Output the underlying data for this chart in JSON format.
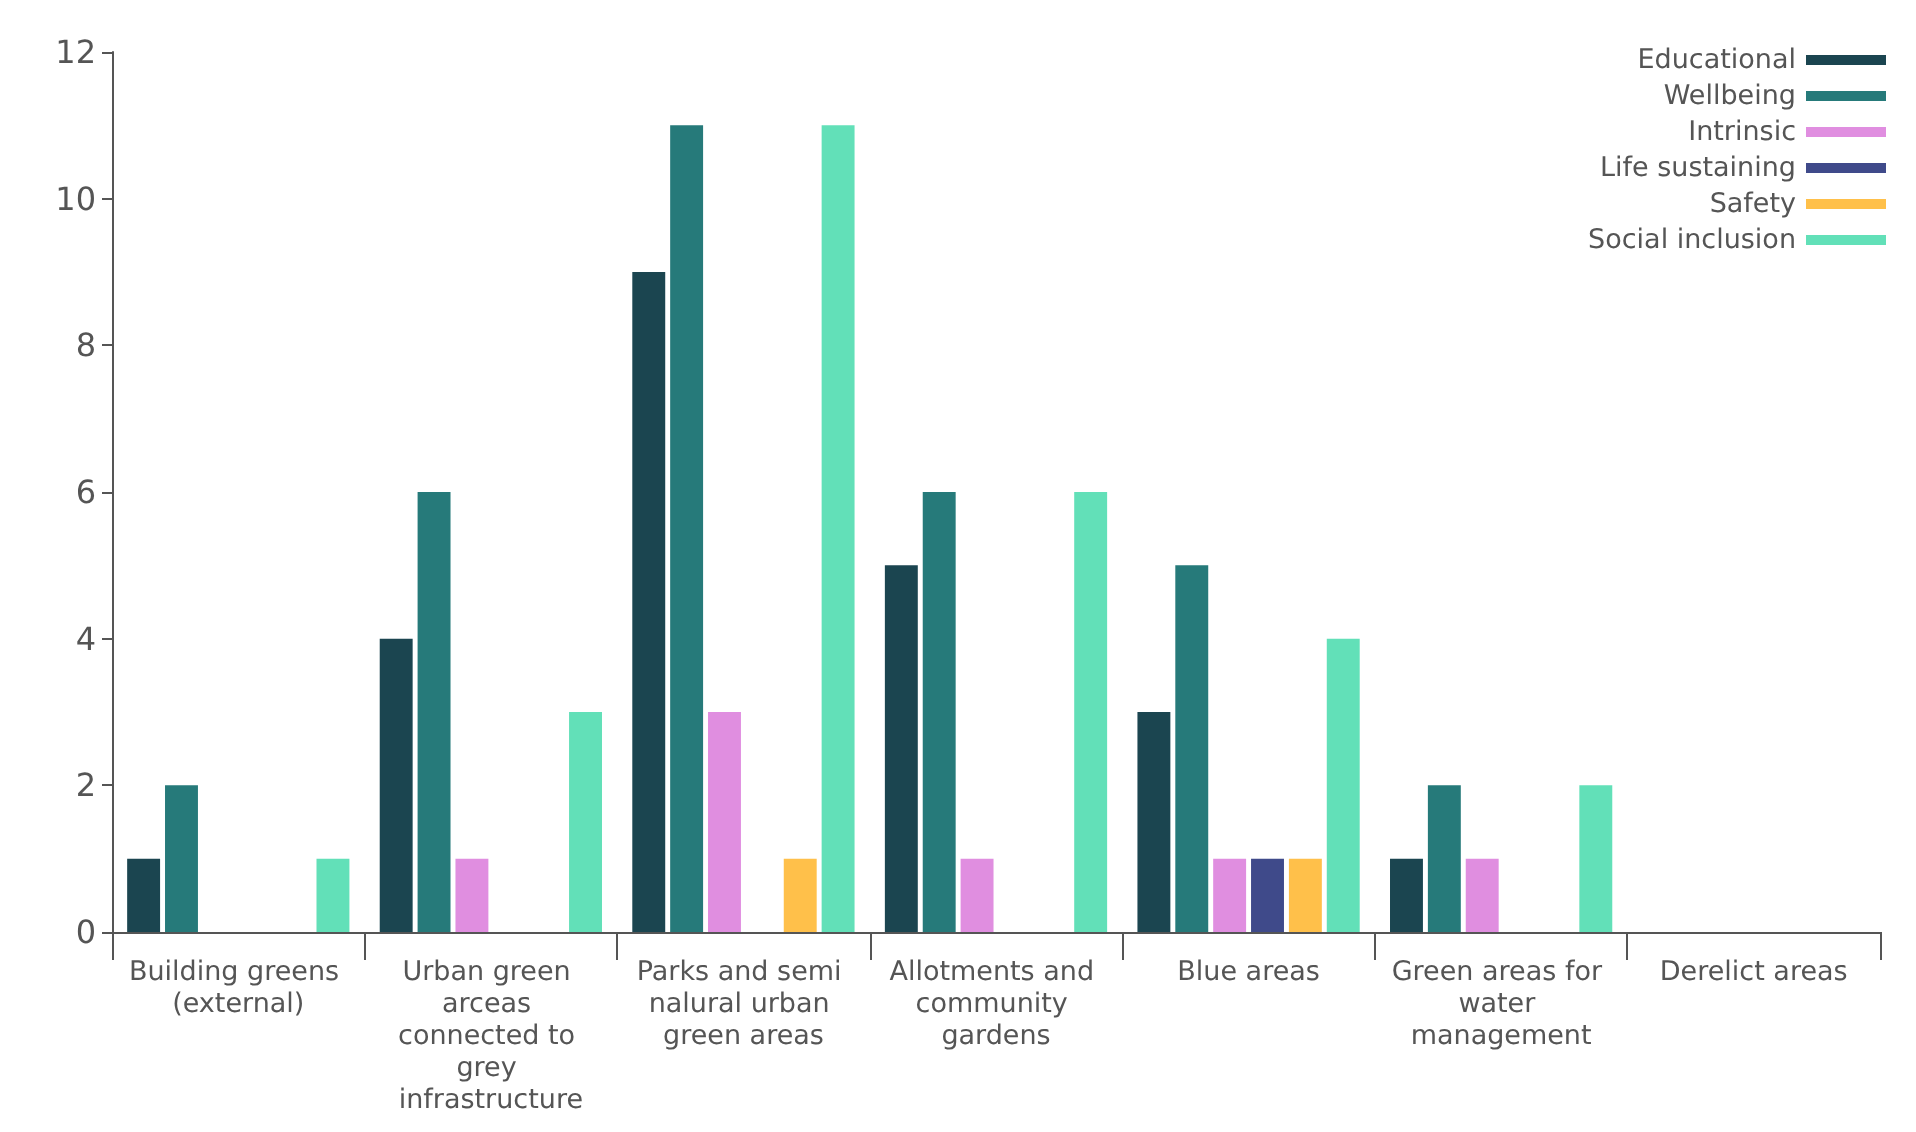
{
  "chart_data": {
    "type": "bar",
    "categories": [
      "Building greens (external)",
      "Urban green arceas connected to grey infrastructure",
      "Parks and semi nalural urban green areas",
      "Allotments and community gardens",
      "Blue areas",
      "Green areas for water management",
      "Derelict areas"
    ],
    "series": [
      {
        "name": "Educational",
        "color": "#1b4550",
        "values": [
          1,
          4,
          9,
          5,
          3,
          1,
          0
        ]
      },
      {
        "name": "Wellbeing",
        "color": "#267a7a",
        "values": [
          2,
          6,
          11,
          6,
          5,
          2,
          0
        ]
      },
      {
        "name": "Intrinsic",
        "color": "#e08ee0",
        "values": [
          0,
          1,
          3,
          1,
          1,
          1,
          0
        ]
      },
      {
        "name": "Life sustaining",
        "color": "#3f4a8a",
        "values": [
          0,
          0,
          0,
          0,
          1,
          0,
          0
        ]
      },
      {
        "name": "Safety",
        "color": "#ffc04a",
        "values": [
          0,
          0,
          1,
          0,
          1,
          0,
          0
        ]
      },
      {
        "name": "Social inclusion",
        "color": "#62e0b8",
        "values": [
          1,
          3,
          11,
          6,
          4,
          2,
          0
        ]
      }
    ],
    "ylim": [
      0,
      12
    ],
    "yticks": [
      0,
      2,
      4,
      6,
      8,
      10,
      12
    ],
    "grid": false,
    "legend": "top right"
  }
}
